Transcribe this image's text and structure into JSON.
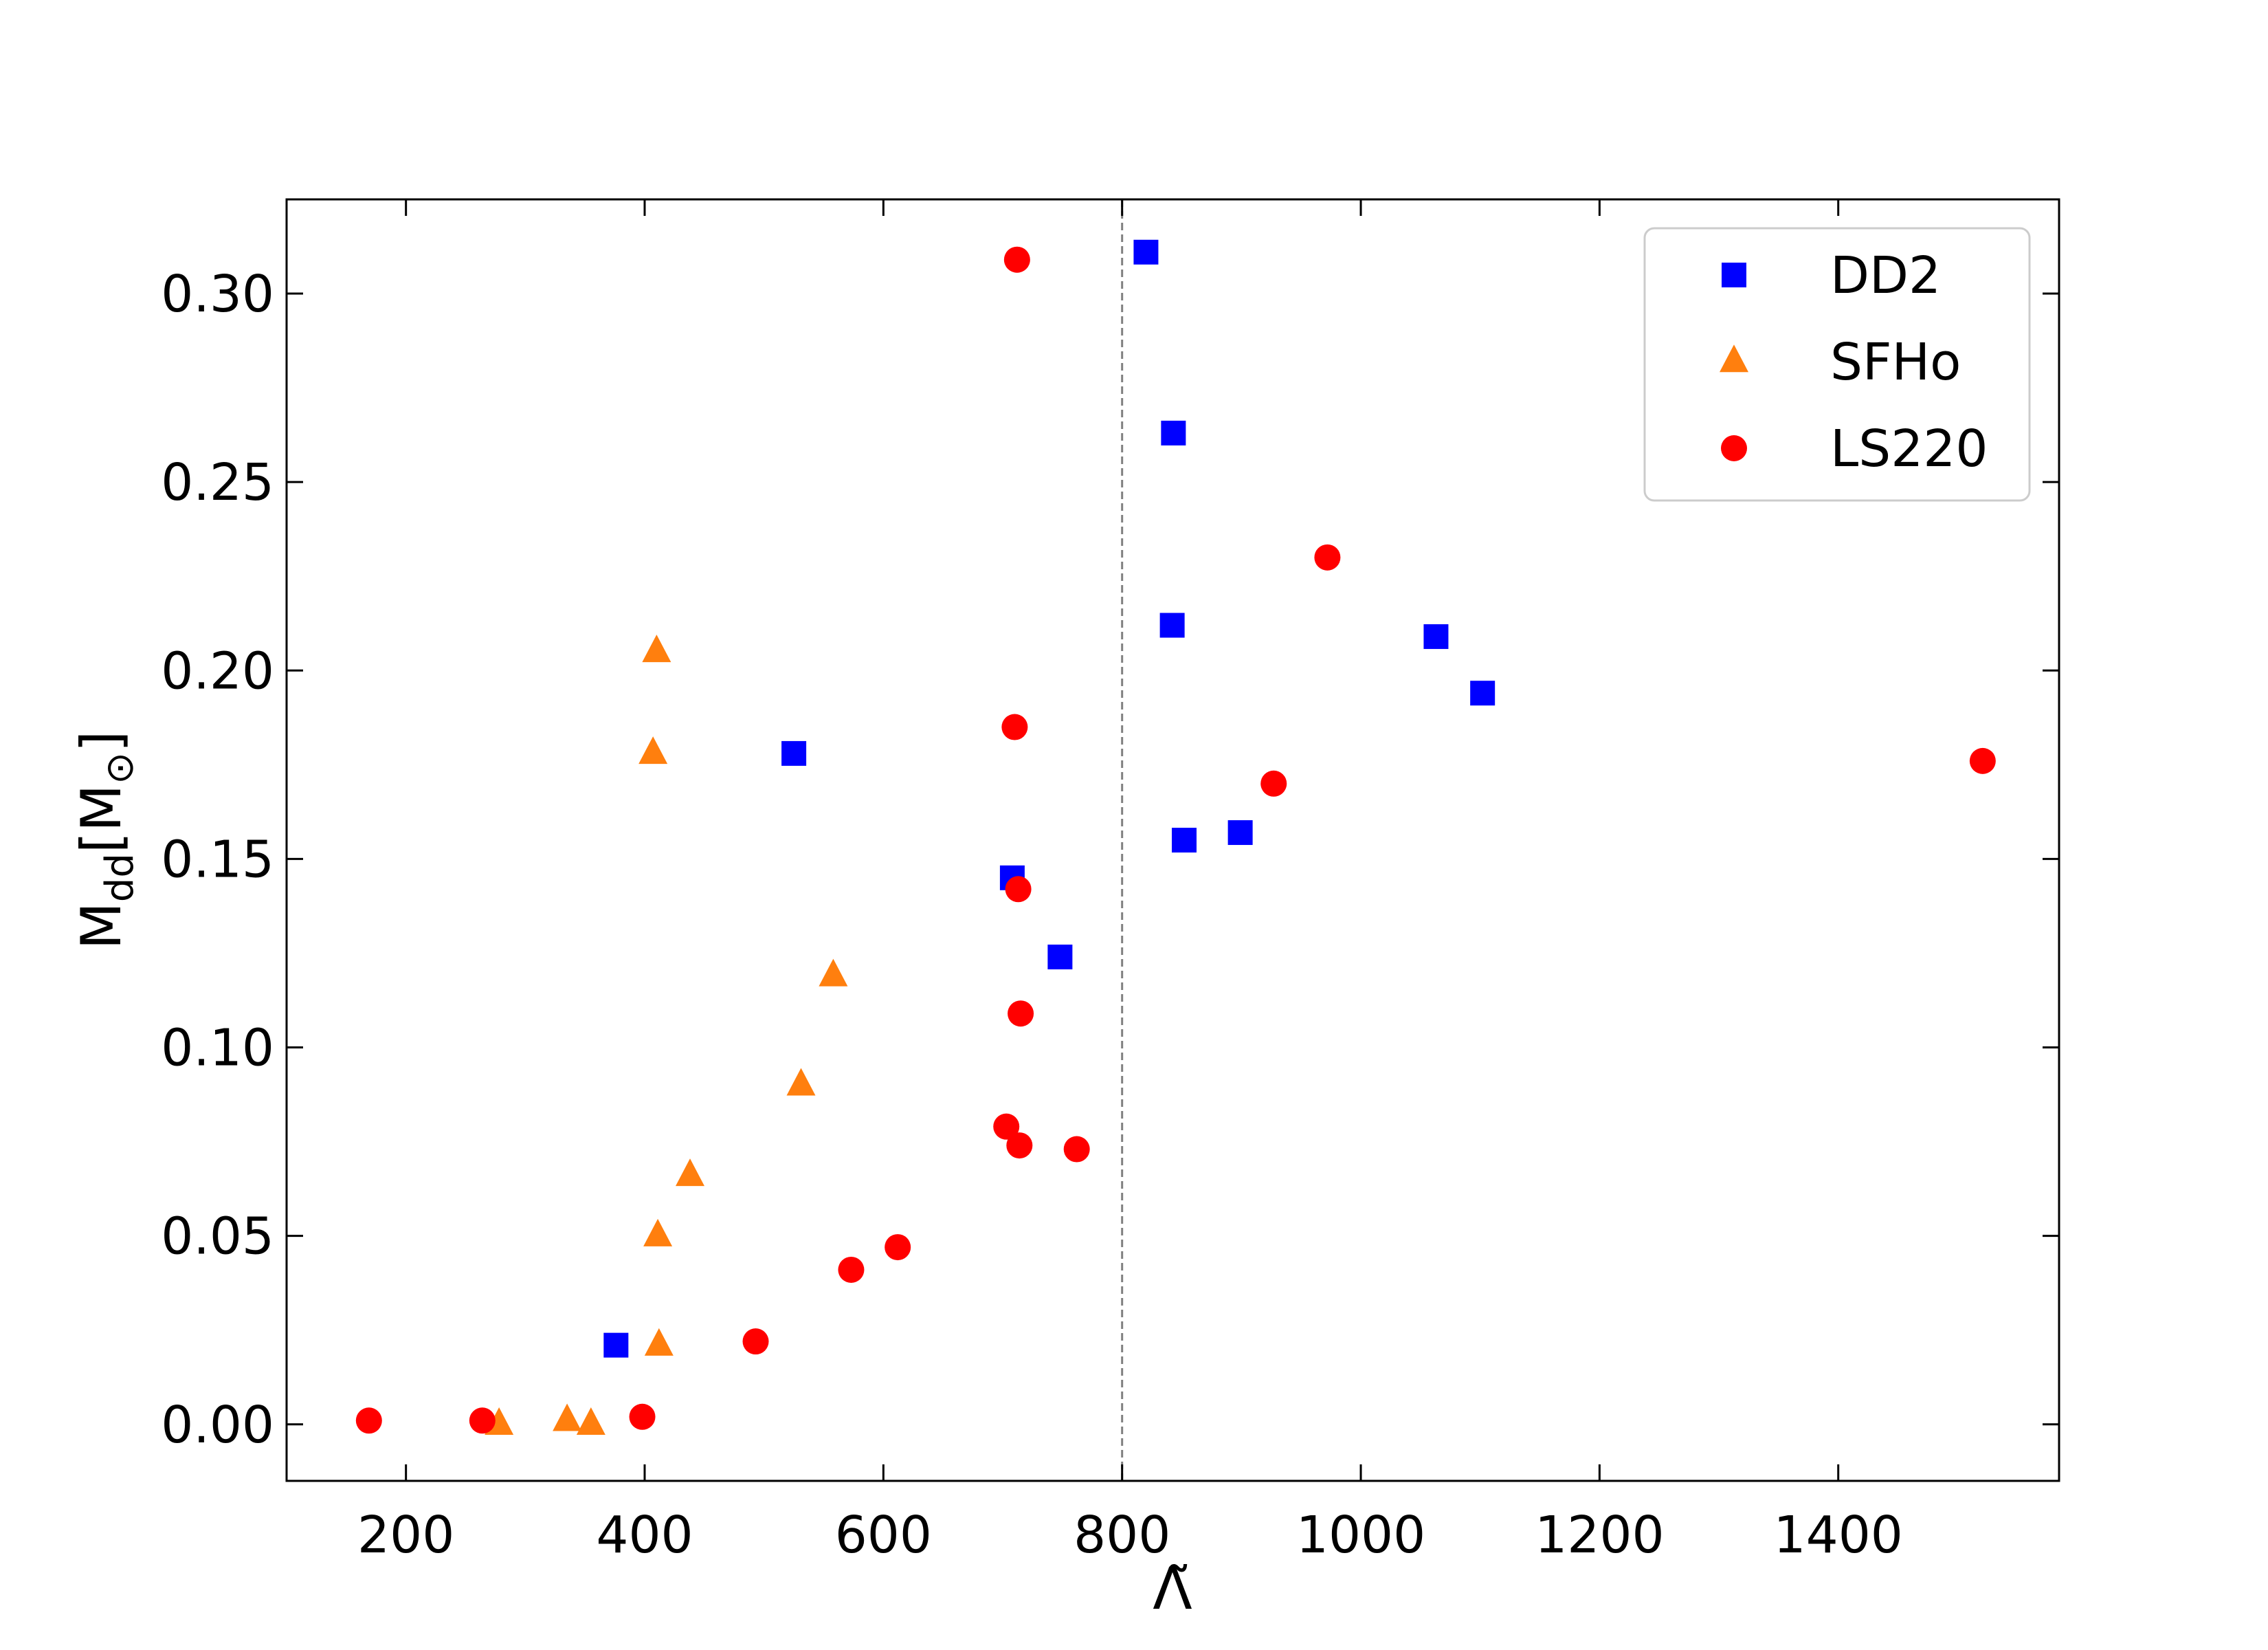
{
  "chart_data": {
    "type": "scatter",
    "title": "",
    "xlabel": "Λ̃",
    "ylabel": {
      "main": "M",
      "sub": "dd",
      "unit_open": "[M",
      "unit_sub": "⊙",
      "unit_close": "]"
    },
    "xlim": [
      100,
      1585
    ],
    "ylim": [
      -0.015,
      0.325
    ],
    "xticks": [
      200,
      400,
      600,
      800,
      1000,
      1200,
      1400
    ],
    "xtick_labels": [
      "200",
      "400",
      "600",
      "800",
      "1000",
      "1200",
      "1400"
    ],
    "yticks": [
      0.0,
      0.05,
      0.1,
      0.15,
      0.2,
      0.25,
      0.3
    ],
    "ytick_labels": [
      "0.00",
      "0.05",
      "0.10",
      "0.15",
      "0.20",
      "0.25",
      "0.30"
    ],
    "grid": false,
    "legend_position": "top-right",
    "reference_line": {
      "x": 800,
      "style": "dashed",
      "color": "#808080"
    },
    "series": [
      {
        "name": "DD2",
        "marker": "square",
        "color": "#0000ff",
        "points": [
          [
            376,
            0.021
          ],
          [
            525,
            0.178
          ],
          [
            708,
            0.145
          ],
          [
            748,
            0.124
          ],
          [
            820,
            0.311
          ],
          [
            843,
            0.263
          ],
          [
            842,
            0.212
          ],
          [
            852,
            0.155
          ],
          [
            899,
            0.157
          ],
          [
            1063,
            0.209
          ],
          [
            1102,
            0.194
          ]
        ]
      },
      {
        "name": "SFHo",
        "marker": "triangle",
        "color": "#ff7f0e",
        "points": [
          [
            278,
            0.0
          ],
          [
            335,
            0.001
          ],
          [
            355,
            0.0
          ],
          [
            407,
            0.178
          ],
          [
            410,
            0.205
          ],
          [
            411,
            0.05
          ],
          [
            412,
            0.021
          ],
          [
            438,
            0.066
          ],
          [
            531,
            0.09
          ],
          [
            558,
            0.119
          ]
        ]
      },
      {
        "name": "LS220",
        "marker": "circle",
        "color": "#ff0000",
        "points": [
          [
            169,
            0.001
          ],
          [
            264,
            0.001
          ],
          [
            398,
            0.002
          ],
          [
            493,
            0.022
          ],
          [
            573,
            0.041
          ],
          [
            612,
            0.047
          ],
          [
            703,
            0.079
          ],
          [
            710,
            0.185
          ],
          [
            712,
            0.309
          ],
          [
            713,
            0.142
          ],
          [
            714,
            0.074
          ],
          [
            715,
            0.109
          ],
          [
            762,
            0.073
          ],
          [
            927,
            0.17
          ],
          [
            972,
            0.23
          ],
          [
            1521,
            0.176
          ]
        ]
      }
    ]
  }
}
